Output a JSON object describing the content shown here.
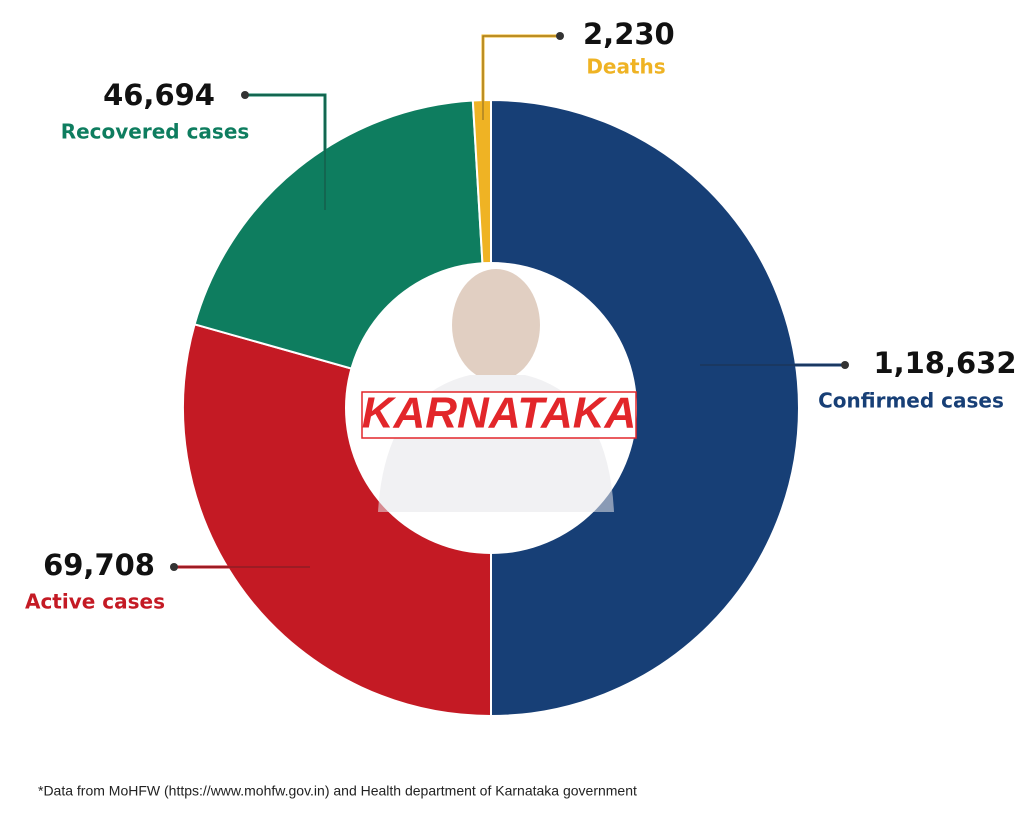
{
  "chart_data": {
    "type": "donut",
    "categories": [
      "Confirmed cases",
      "Active cases",
      "Recovered cases",
      "Deaths"
    ],
    "values": [
      118632,
      69708,
      46694,
      2230
    ],
    "value_labels": [
      "1,18,632",
      "69,708",
      "46,694",
      "2,230"
    ],
    "colors": [
      "#173f76",
      "#c41a24",
      "#0e7d5f",
      "#efb324"
    ],
    "center_label": "KARNATAKA",
    "footnote": "*Data from MoHFW (https://www.mohfw.gov.in) and Health department of Karnataka government"
  }
}
